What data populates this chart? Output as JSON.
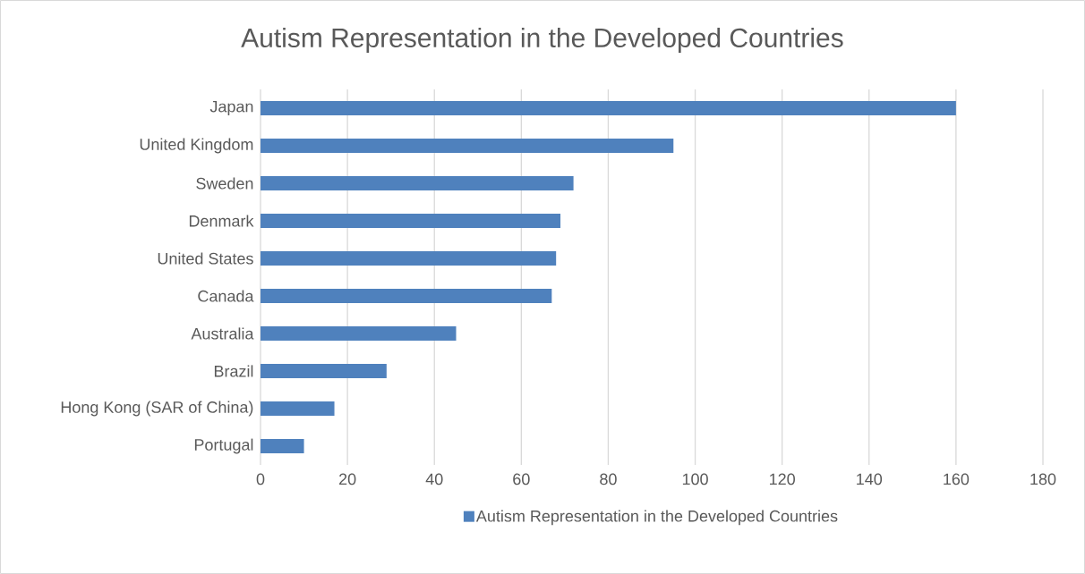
{
  "chart_data": {
    "type": "bar",
    "orientation": "horizontal",
    "title": "Autism Representation in the Developed Countries",
    "categories": [
      "Japan",
      "United Kingdom",
      "Sweden",
      "Denmark",
      "United States",
      "Canada",
      "Australia",
      "Brazil",
      "Hong Kong (SAR of China)",
      "Portugal"
    ],
    "series": [
      {
        "name": "Autism Representation in the Developed Countries",
        "color": "#4f81bd",
        "values": [
          160,
          95,
          72,
          69,
          68,
          67,
          45,
          29,
          17,
          10
        ]
      }
    ],
    "xlim": [
      0,
      180
    ],
    "xticks": [
      0,
      20,
      40,
      60,
      80,
      100,
      120,
      140,
      160,
      180
    ],
    "grid": "x",
    "legend": "bottom"
  }
}
